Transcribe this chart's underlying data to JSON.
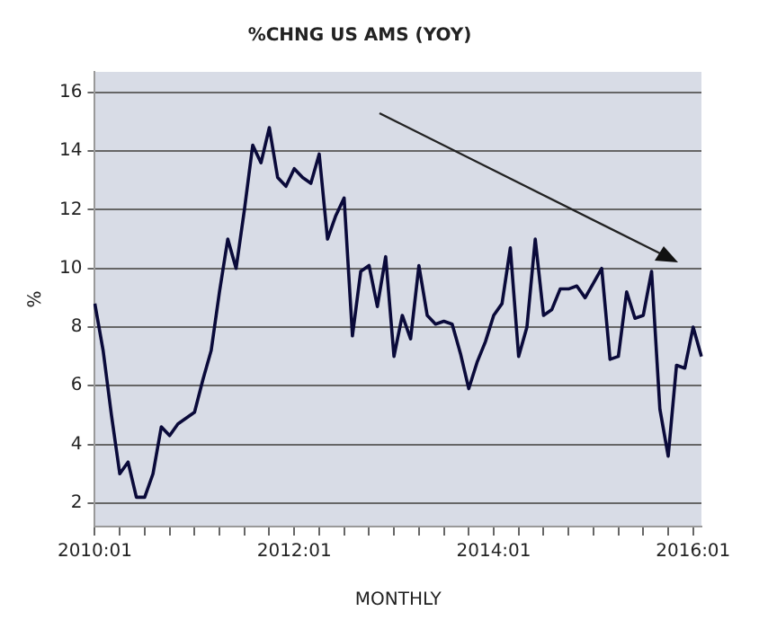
{
  "chart_data": {
    "type": "line",
    "title": "%CHNG US AMS (YOY)",
    "xlabel": "MONTHLY",
    "ylabel": "%",
    "categories": [
      "2010:01",
      null,
      null,
      null,
      null,
      null,
      null,
      null,
      null,
      null,
      null,
      null,
      null,
      null,
      null,
      null,
      null,
      null,
      null,
      null,
      null,
      null,
      null,
      null,
      "2012:01",
      null,
      null,
      null,
      null,
      null,
      null,
      null,
      null,
      null,
      null,
      null,
      null,
      null,
      null,
      null,
      null,
      null,
      null,
      null,
      null,
      null,
      null,
      null,
      "2014:01",
      null,
      null,
      null,
      null,
      null,
      null,
      null,
      null,
      null,
      null,
      null,
      null,
      null,
      null,
      null,
      null,
      null,
      null,
      null,
      null,
      null,
      null,
      null,
      "2016:01",
      null
    ],
    "series": [
      {
        "color": "#0a0a3a",
        "values": [
          8.8,
          7.2,
          5,
          3.0,
          3.4,
          2.2,
          2.2,
          3.0,
          4.6,
          4.3,
          4.7,
          4.9,
          5.1,
          6.2,
          7.2,
          9.2,
          11.0,
          10.0,
          12.0,
          14.2,
          13.6,
          14.8,
          13.1,
          12.8,
          13.4,
          13.1,
          12.9,
          13.9,
          11.0,
          11.8,
          12.4,
          7.7,
          9.9,
          10.1,
          8.7,
          10.4,
          7.0,
          8.4,
          7.6,
          10.1,
          8.4,
          8.1,
          8.2,
          8.1,
          7.1,
          5.9,
          6.8,
          7.5,
          8.4,
          8.8,
          10.7,
          7.0,
          8.0,
          11.0,
          8.4,
          8.6,
          9.3,
          9.3,
          9.4,
          9.0,
          9.5,
          10.0,
          6.9,
          7.0,
          9.2,
          8.3,
          8.4,
          9.9,
          5.2,
          3.6,
          6.7,
          6.6,
          8.0,
          7.0
        ]
      }
    ],
    "ylim": [
      1.2,
      16.7
    ],
    "yticks": [
      2,
      4,
      6,
      8,
      10,
      12,
      14,
      16
    ],
    "grid": "y",
    "legend": false,
    "marker": "none",
    "line_style": "solid"
  }
}
